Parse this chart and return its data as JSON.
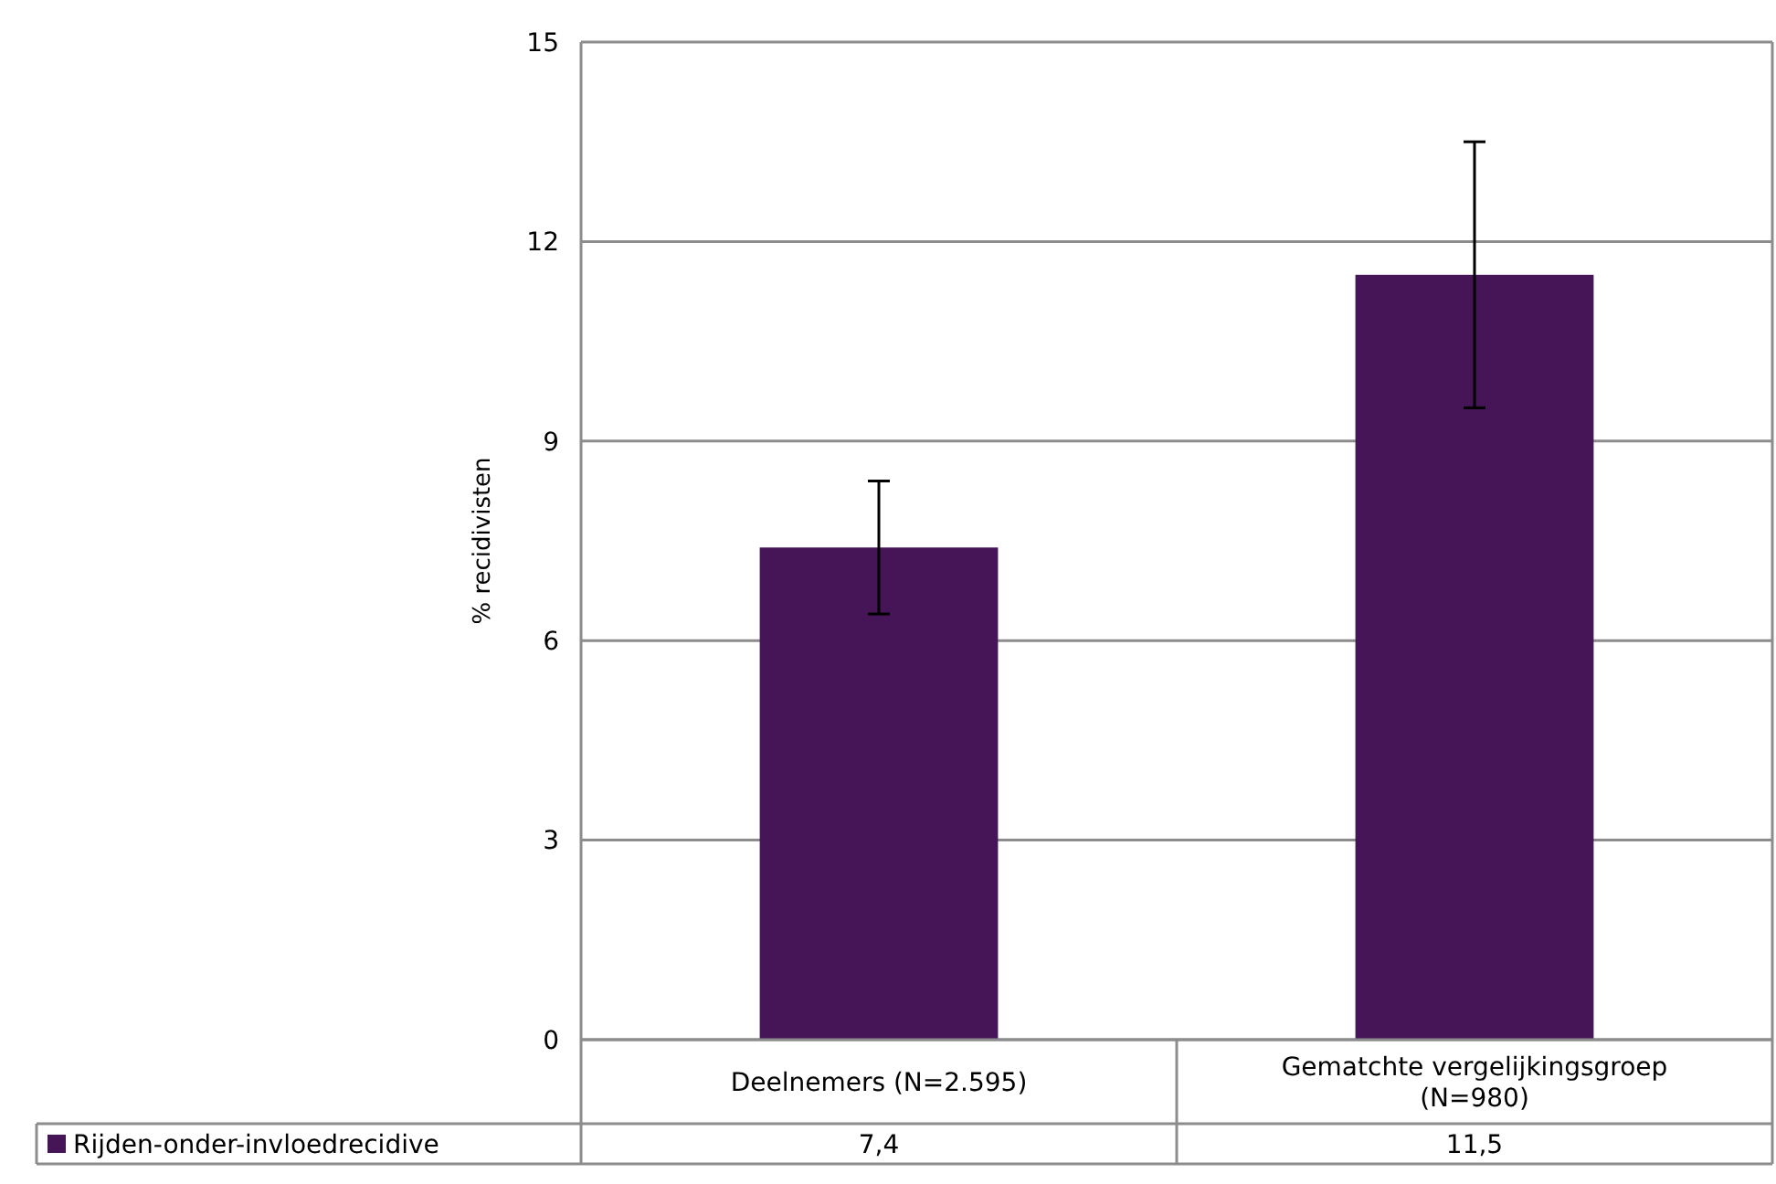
{
  "chart_data": {
    "type": "bar",
    "ylabel": "% recidivisten",
    "categories": [
      "Deelnemers (N=2.595)",
      "Gematchte vergelijkingsgroep (N=980)"
    ],
    "series": [
      {
        "name": "Rijden-onder-invloedrecidive",
        "color": "#461558",
        "values": [
          7.4,
          11.5
        ],
        "errors": [
          [
            6.4,
            8.4
          ],
          [
            9.5,
            13.5
          ]
        ],
        "value_labels": [
          "7,4",
          "11,5"
        ]
      }
    ],
    "ylim": [
      0,
      15
    ],
    "yticks": [
      0,
      3,
      6,
      9,
      12,
      15
    ],
    "grid": "y",
    "legend": "bottom"
  }
}
